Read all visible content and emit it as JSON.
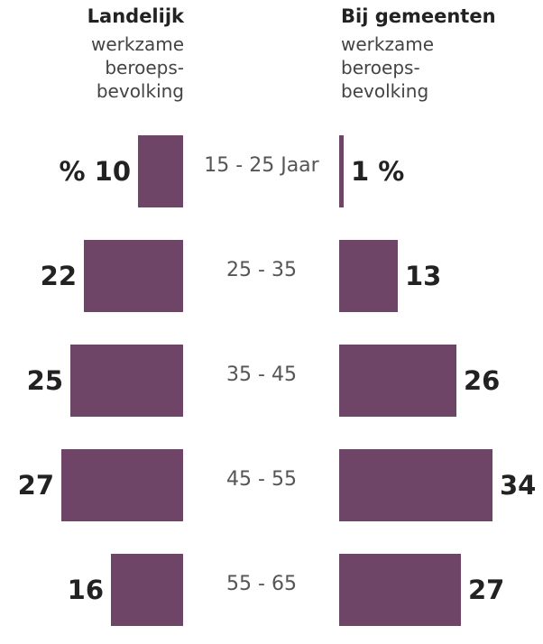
{
  "chart_data": {
    "type": "butterfly-bar",
    "categories": [
      "15 - 25 Jaar",
      "25 - 35",
      "35 - 45",
      "45 - 55",
      "55 - 65"
    ],
    "color": "#6e4567",
    "series": [
      {
        "name": "Landelijk",
        "subtitle": "werkzame beroeps-bevolking",
        "values": [
          10,
          22,
          25,
          27,
          16
        ],
        "value_labels": [
          "% 10",
          "22",
          "25",
          "27",
          "16"
        ]
      },
      {
        "name": "Bij gemeenten",
        "subtitle": "werkzame beroeps-bevolking",
        "values": [
          1,
          13,
          26,
          34,
          27
        ],
        "value_labels": [
          "1 %",
          "13",
          "26",
          "34",
          "27"
        ]
      }
    ]
  }
}
